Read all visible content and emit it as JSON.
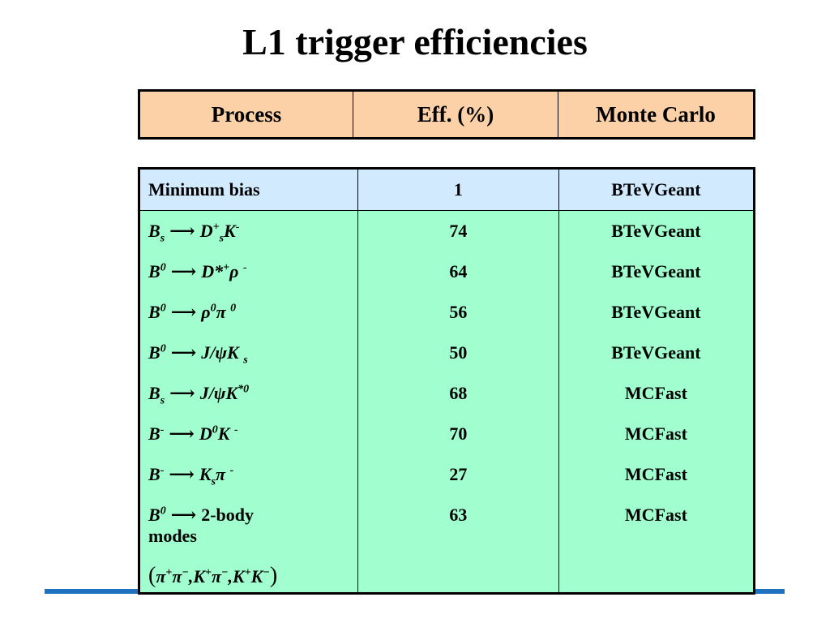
{
  "title": "L1 trigger efficiencies",
  "header": {
    "col1": "Process",
    "col2": "Eff. (%)",
    "col3": "Monte Carlo"
  },
  "rows": [
    {
      "process": "Minimum bias",
      "eff": "1",
      "mc": "BTeVGeant"
    },
    {
      "process": "Bs → D+sK-",
      "eff": "74",
      "mc": "BTeVGeant"
    },
    {
      "process": "B0 → D*+ρ -",
      "eff": "64",
      "mc": "BTeVGeant"
    },
    {
      "process": "B0 → ρ0π 0",
      "eff": "56",
      "mc": "BTeVGeant"
    },
    {
      "process": "B0 → J/ψKs",
      "eff": "50",
      "mc": "BTeVGeant"
    },
    {
      "process": "Bs → J/ψK*0",
      "eff": "68",
      "mc": "MCFast"
    },
    {
      "process": "B- → D0K -",
      "eff": "70",
      "mc": "MCFast"
    },
    {
      "process": "B- → Ksπ -",
      "eff": "27",
      "mc": "MCFast"
    },
    {
      "process": "B0 2-body modes (π+π−,K+π−,K+K−)",
      "eff": "63",
      "mc": "MCFast"
    }
  ],
  "colors": {
    "header_bg": "#fcd1a8",
    "minbias_bg": "#d1eafe",
    "body_bg": "#a1ffcf",
    "rule": "#1f72c0"
  }
}
